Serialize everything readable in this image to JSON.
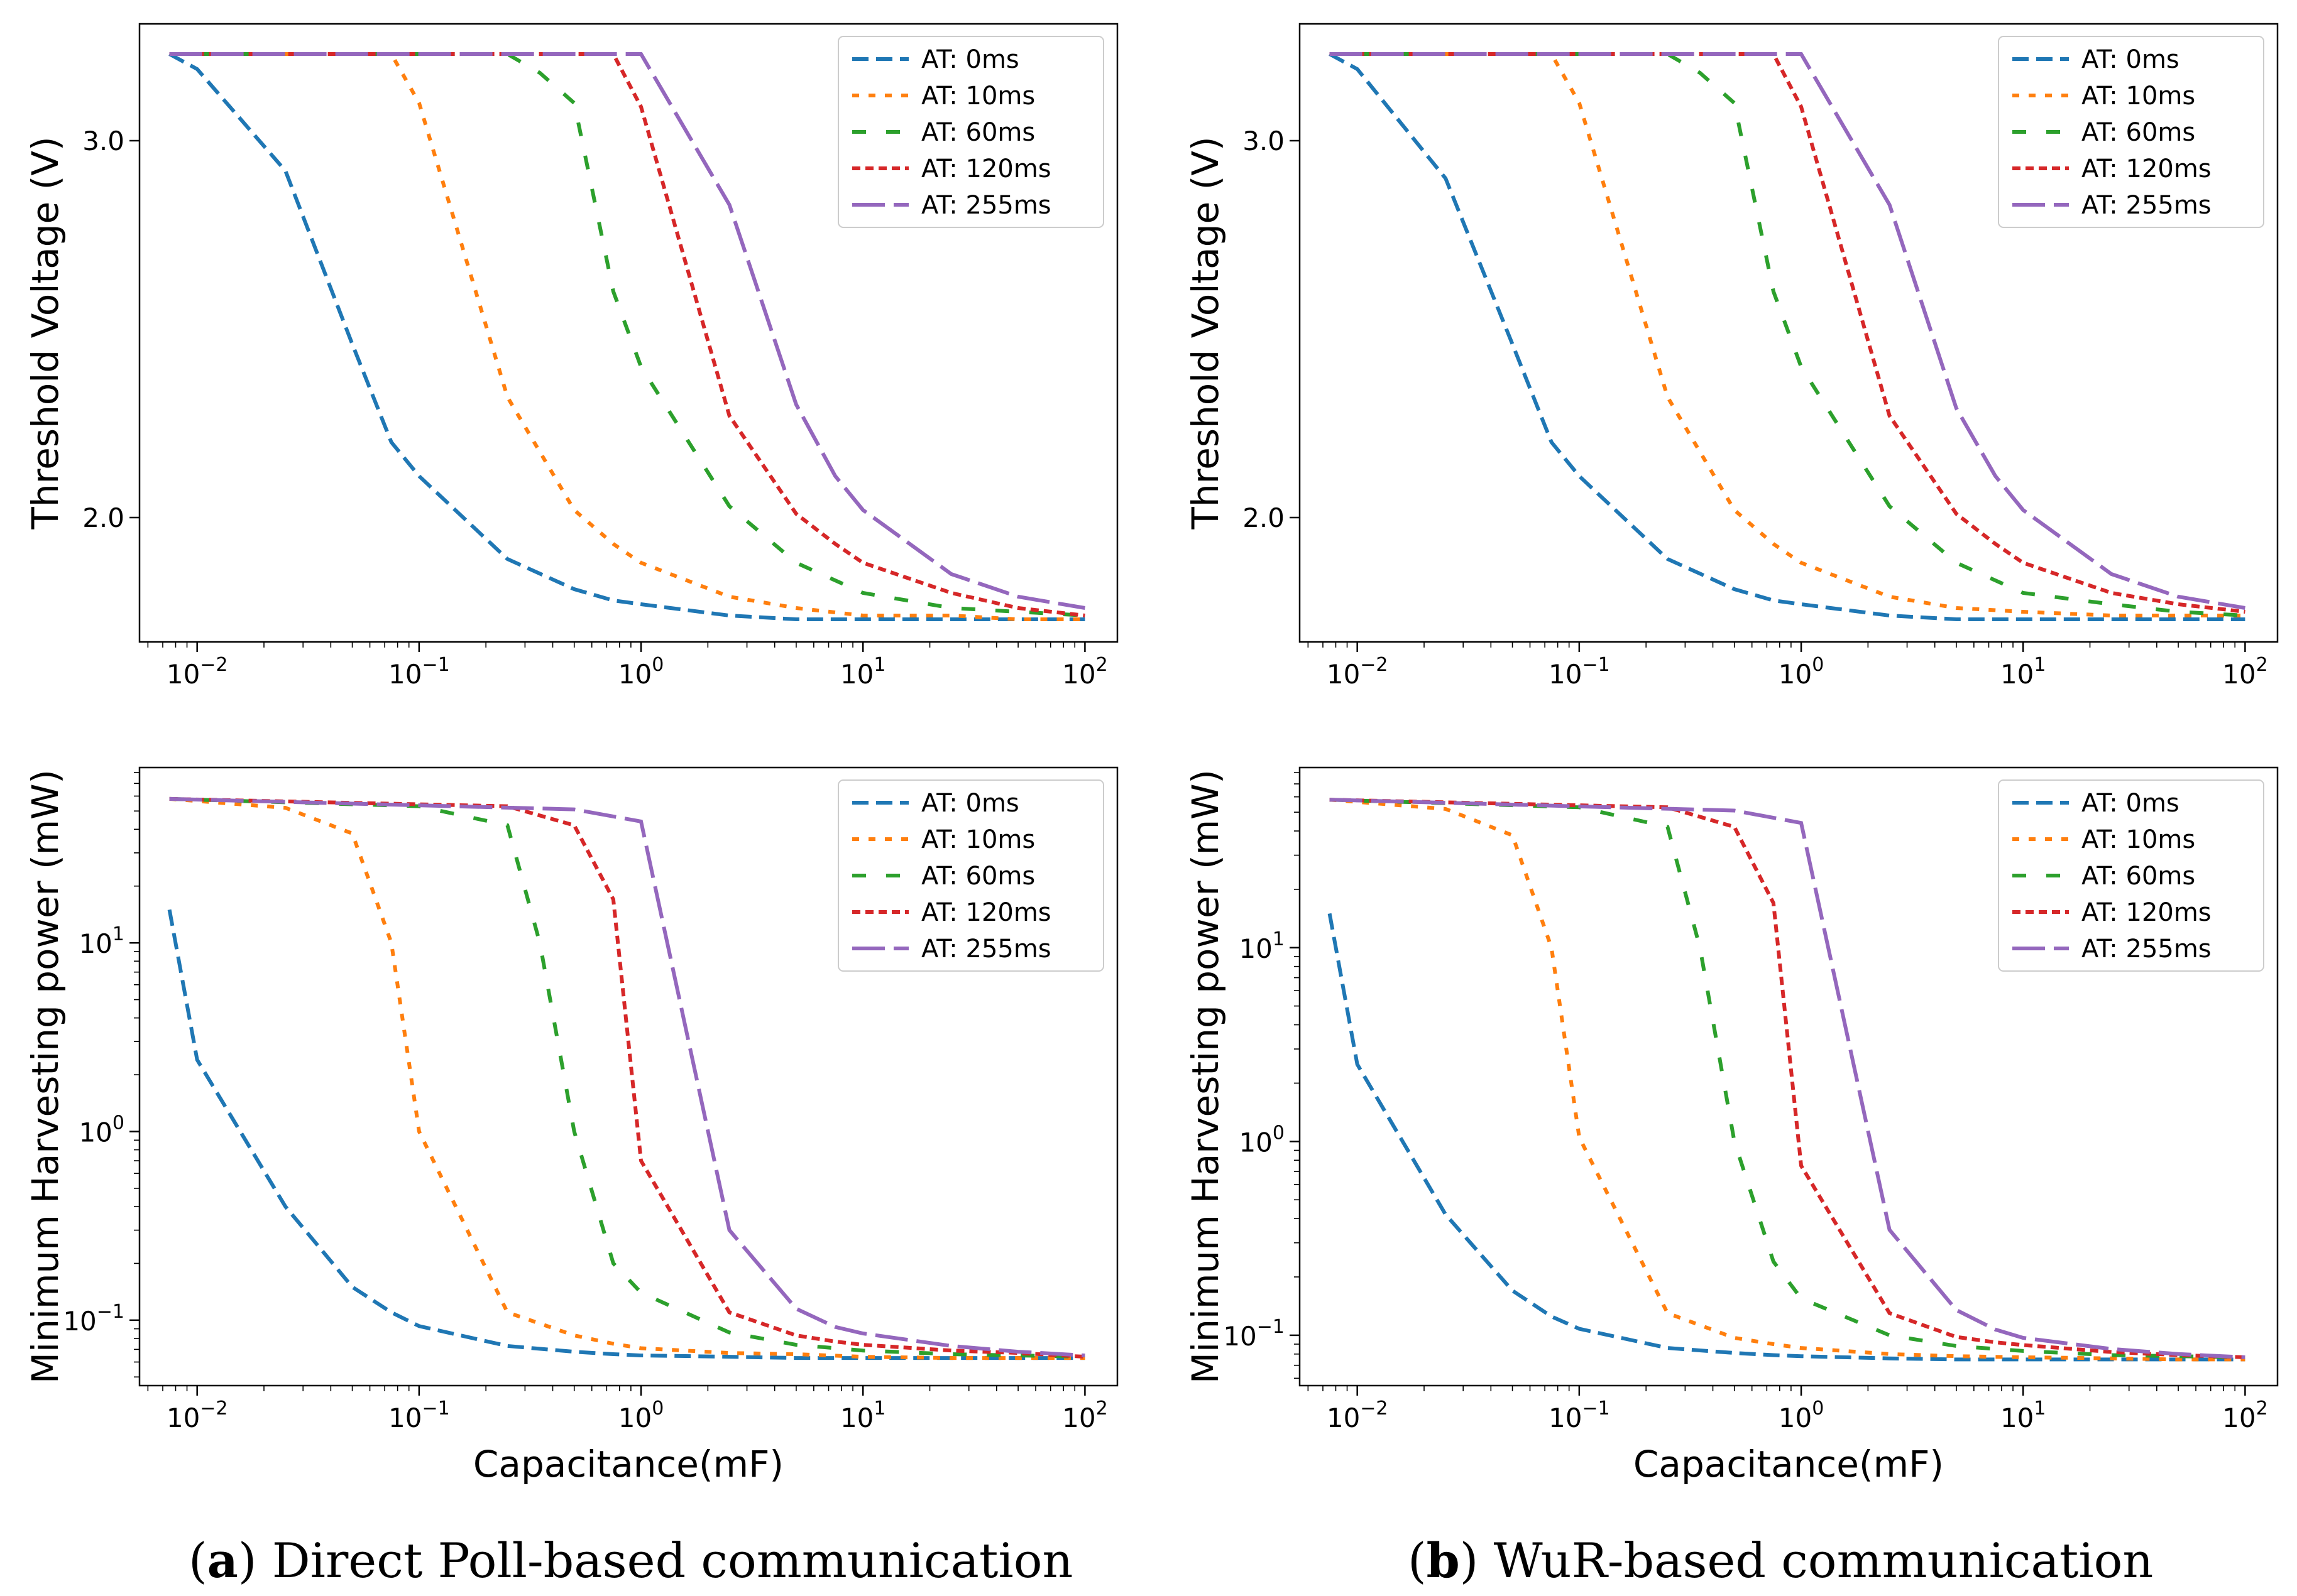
{
  "colors": {
    "AT: 0ms": "#1f77b4",
    "AT: 10ms": "#ff7f0e",
    "AT: 60ms": "#2ca02c",
    "AT: 120ms": "#d62728",
    "AT: 255ms": "#9467bd"
  },
  "captions": {
    "a_label": "a",
    "a_text": " Direct Poll-based communication",
    "b_label": "b",
    "b_text": " WuR-based communication",
    "open_paren": "(",
    "close_paren": ")"
  },
  "chart_data": [
    {
      "id": "a-top",
      "type": "line",
      "panel": "a",
      "ylabel": "Threshold Voltage (V)",
      "xlabel": "",
      "xscale": "log",
      "yscale": "linear",
      "xlim": [
        0.0055,
        140
      ],
      "ylim": [
        1.67,
        3.31
      ],
      "xticks": [
        0.01,
        0.1,
        1,
        10,
        100
      ],
      "xticklabels": [
        "10^-2",
        "10^-1",
        "10^0",
        "10^1",
        "10^2"
      ],
      "yticks": [
        2.0,
        3.0
      ],
      "yticklabels": [
        "2.0",
        "3.0"
      ],
      "legend": "top-right",
      "series": [
        {
          "name": "AT: 0ms",
          "x": [
            0.0075,
            0.01,
            0.025,
            0.05,
            0.075,
            0.1,
            0.25,
            0.5,
            0.75,
            1,
            2.5,
            5,
            7.5,
            10,
            25,
            50,
            75,
            100
          ],
          "y": [
            3.23,
            3.19,
            2.92,
            2.46,
            2.2,
            2.11,
            1.89,
            1.81,
            1.78,
            1.77,
            1.74,
            1.73,
            1.73,
            1.73,
            1.73,
            1.73,
            1.73,
            1.73
          ]
        },
        {
          "name": "AT: 10ms",
          "x": [
            0.0075,
            0.025,
            0.05,
            0.075,
            0.1,
            0.25,
            0.5,
            0.75,
            1,
            2.5,
            5,
            10,
            25,
            50,
            100
          ],
          "y": [
            3.23,
            3.23,
            3.23,
            3.23,
            3.1,
            2.32,
            2.02,
            1.93,
            1.88,
            1.79,
            1.76,
            1.74,
            1.74,
            1.73,
            1.73
          ]
        },
        {
          "name": "AT: 60ms",
          "x": [
            0.0075,
            0.1,
            0.25,
            0.35,
            0.5,
            0.75,
            1,
            2.5,
            5,
            10,
            25,
            50,
            100
          ],
          "y": [
            3.23,
            3.23,
            3.23,
            3.18,
            3.1,
            2.6,
            2.4,
            2.03,
            1.88,
            1.8,
            1.76,
            1.75,
            1.74
          ]
        },
        {
          "name": "AT: 120ms",
          "x": [
            0.0075,
            0.25,
            0.5,
            0.75,
            1,
            2.5,
            5,
            7.5,
            10,
            25,
            50,
            100
          ],
          "y": [
            3.23,
            3.23,
            3.23,
            3.23,
            3.09,
            2.27,
            2.01,
            1.93,
            1.88,
            1.8,
            1.76,
            1.74
          ]
        },
        {
          "name": "AT: 255ms",
          "x": [
            0.0075,
            0.5,
            1,
            2.5,
            5,
            7.5,
            10,
            25,
            50,
            100
          ],
          "y": [
            3.23,
            3.23,
            3.23,
            2.83,
            2.3,
            2.11,
            2.02,
            1.85,
            1.79,
            1.76
          ]
        }
      ]
    },
    {
      "id": "b-top",
      "type": "line",
      "panel": "b",
      "ylabel": "Threshold Voltage (V)",
      "xlabel": "",
      "xscale": "log",
      "yscale": "linear",
      "xlim": [
        0.0055,
        140
      ],
      "ylim": [
        1.67,
        3.31
      ],
      "xticks": [
        0.01,
        0.1,
        1,
        10,
        100
      ],
      "xticklabels": [
        "10^-2",
        "10^-1",
        "10^0",
        "10^1",
        "10^2"
      ],
      "yticks": [
        2.0,
        3.0
      ],
      "yticklabels": [
        "2.0",
        "3.0"
      ],
      "legend": "top-right",
      "series": [
        {
          "name": "AT: 0ms",
          "x": [
            0.0075,
            0.01,
            0.025,
            0.05,
            0.075,
            0.1,
            0.25,
            0.5,
            0.75,
            1,
            2.5,
            5,
            7.5,
            10,
            25,
            50,
            75,
            100
          ],
          "y": [
            3.23,
            3.19,
            2.9,
            2.46,
            2.2,
            2.11,
            1.89,
            1.81,
            1.78,
            1.77,
            1.74,
            1.73,
            1.73,
            1.73,
            1.73,
            1.73,
            1.73,
            1.73
          ]
        },
        {
          "name": "AT: 10ms",
          "x": [
            0.0075,
            0.025,
            0.05,
            0.075,
            0.1,
            0.25,
            0.5,
            0.75,
            1,
            2.5,
            5,
            10,
            25,
            50,
            100
          ],
          "y": [
            3.23,
            3.23,
            3.23,
            3.23,
            3.1,
            2.32,
            2.02,
            1.93,
            1.88,
            1.79,
            1.76,
            1.75,
            1.74,
            1.74,
            1.74
          ]
        },
        {
          "name": "AT: 60ms",
          "x": [
            0.0075,
            0.1,
            0.25,
            0.35,
            0.5,
            0.75,
            1,
            2.5,
            5,
            10,
            25,
            50,
            100
          ],
          "y": [
            3.23,
            3.23,
            3.23,
            3.18,
            3.1,
            2.6,
            2.4,
            2.03,
            1.88,
            1.8,
            1.77,
            1.75,
            1.74
          ]
        },
        {
          "name": "AT: 120ms",
          "x": [
            0.0075,
            0.25,
            0.5,
            0.75,
            1,
            2.5,
            5,
            7.5,
            10,
            25,
            50,
            100
          ],
          "y": [
            3.23,
            3.23,
            3.23,
            3.23,
            3.09,
            2.27,
            2.01,
            1.93,
            1.88,
            1.8,
            1.77,
            1.75
          ]
        },
        {
          "name": "AT: 255ms",
          "x": [
            0.0075,
            0.5,
            1,
            2.5,
            5,
            7.5,
            10,
            25,
            50,
            100
          ],
          "y": [
            3.23,
            3.23,
            3.23,
            2.83,
            2.29,
            2.11,
            2.02,
            1.85,
            1.79,
            1.76
          ]
        }
      ]
    },
    {
      "id": "a-bottom",
      "type": "line",
      "panel": "a",
      "ylabel": "Minimum Harvesting power (mW)",
      "xlabel": "Capacitance(mF)",
      "xscale": "log",
      "yscale": "log",
      "xlim": [
        0.0055,
        140
      ],
      "ylim": [
        0.045,
        85
      ],
      "xticks": [
        0.01,
        0.1,
        1,
        10,
        100
      ],
      "xticklabels": [
        "10^-2",
        "10^-1",
        "10^0",
        "10^1",
        "10^2"
      ],
      "yticks": [
        0.1,
        1,
        10
      ],
      "yticklabels": [
        "10^-1",
        "10^0",
        "10^1"
      ],
      "legend": "top-right",
      "series": [
        {
          "name": "AT: 0ms",
          "x": [
            0.0075,
            0.01,
            0.025,
            0.05,
            0.075,
            0.1,
            0.25,
            0.5,
            0.75,
            1,
            2.5,
            5,
            7.5,
            10,
            25,
            50,
            75,
            100
          ],
          "y": [
            15,
            2.4,
            0.4,
            0.15,
            0.11,
            0.093,
            0.073,
            0.068,
            0.066,
            0.065,
            0.064,
            0.063,
            0.063,
            0.063,
            0.063,
            0.063,
            0.063,
            0.063
          ]
        },
        {
          "name": "AT: 10ms",
          "x": [
            0.0075,
            0.025,
            0.05,
            0.075,
            0.1,
            0.25,
            0.5,
            0.75,
            1,
            2.5,
            5,
            10,
            25,
            50,
            100
          ],
          "y": [
            58,
            52,
            38,
            10,
            1.0,
            0.11,
            0.083,
            0.075,
            0.071,
            0.067,
            0.066,
            0.064,
            0.063,
            0.063,
            0.063
          ]
        },
        {
          "name": "AT: 60ms",
          "x": [
            0.0075,
            0.1,
            0.25,
            0.35,
            0.5,
            0.75,
            1,
            2.5,
            5,
            10,
            25,
            50,
            100
          ],
          "y": [
            58,
            53,
            42,
            10,
            1.0,
            0.2,
            0.14,
            0.086,
            0.074,
            0.069,
            0.066,
            0.065,
            0.064
          ]
        },
        {
          "name": "AT: 120ms",
          "x": [
            0.0075,
            0.25,
            0.5,
            0.75,
            1,
            2.5,
            5,
            7.5,
            10,
            25,
            50,
            100
          ],
          "y": [
            58,
            53,
            42,
            17,
            0.7,
            0.11,
            0.083,
            0.077,
            0.074,
            0.069,
            0.067,
            0.064
          ]
        },
        {
          "name": "AT: 255ms",
          "x": [
            0.0075,
            0.5,
            1,
            2.5,
            5,
            7.5,
            10,
            25,
            50,
            100
          ],
          "y": [
            58,
            51,
            44,
            0.3,
            0.115,
            0.092,
            0.085,
            0.073,
            0.068,
            0.065
          ]
        }
      ]
    },
    {
      "id": "b-bottom",
      "type": "line",
      "panel": "b",
      "ylabel": "Minimum Harvesting power (mW)",
      "xlabel": "Capacitance(mF)",
      "xscale": "log",
      "yscale": "log",
      "xlim": [
        0.0055,
        140
      ],
      "ylim": [
        0.055,
        85
      ],
      "xticks": [
        0.01,
        0.1,
        1,
        10,
        100
      ],
      "xticklabels": [
        "10^-2",
        "10^-1",
        "10^0",
        "10^1",
        "10^2"
      ],
      "yticks": [
        0.1,
        1,
        10
      ],
      "yticklabels": [
        "10^-1",
        "10^0",
        "10^1"
      ],
      "legend": "top-right",
      "series": [
        {
          "name": "AT: 0ms",
          "x": [
            0.0075,
            0.01,
            0.025,
            0.05,
            0.075,
            0.1,
            0.25,
            0.5,
            0.75,
            1,
            2.5,
            5,
            7.5,
            10,
            25,
            50,
            75,
            100
          ],
          "y": [
            15,
            2.5,
            0.42,
            0.17,
            0.125,
            0.108,
            0.086,
            0.081,
            0.079,
            0.078,
            0.076,
            0.075,
            0.075,
            0.075,
            0.075,
            0.075,
            0.075,
            0.075
          ]
        },
        {
          "name": "AT: 10ms",
          "x": [
            0.0075,
            0.025,
            0.05,
            0.075,
            0.1,
            0.25,
            0.5,
            0.75,
            1,
            2.5,
            5,
            10,
            25,
            50,
            100
          ],
          "y": [
            58,
            52,
            38,
            10,
            1.05,
            0.13,
            0.097,
            0.09,
            0.086,
            0.08,
            0.078,
            0.077,
            0.076,
            0.075,
            0.075
          ]
        },
        {
          "name": "AT: 60ms",
          "x": [
            0.0075,
            0.1,
            0.25,
            0.35,
            0.5,
            0.75,
            1,
            2.5,
            5,
            10,
            25,
            50,
            100
          ],
          "y": [
            58,
            53,
            42,
            10,
            1.0,
            0.24,
            0.155,
            0.1,
            0.088,
            0.083,
            0.079,
            0.078,
            0.077
          ]
        },
        {
          "name": "AT: 120ms",
          "x": [
            0.0075,
            0.25,
            0.5,
            0.75,
            1,
            2.5,
            5,
            7.5,
            10,
            25,
            50,
            100
          ],
          "y": [
            58,
            53,
            42,
            17,
            0.75,
            0.13,
            0.098,
            0.092,
            0.089,
            0.082,
            0.079,
            0.077
          ]
        },
        {
          "name": "AT: 255ms",
          "x": [
            0.0075,
            0.5,
            1,
            2.5,
            5,
            7.5,
            10,
            25,
            50,
            100
          ],
          "y": [
            58,
            51,
            44,
            0.35,
            0.135,
            0.107,
            0.097,
            0.085,
            0.08,
            0.077
          ]
        }
      ]
    }
  ]
}
